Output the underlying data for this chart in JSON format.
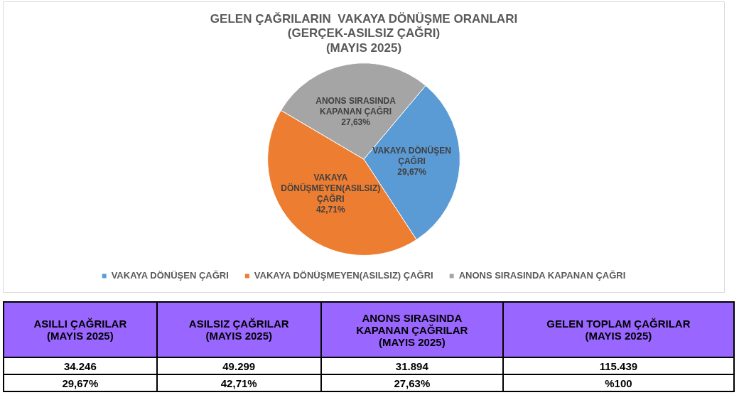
{
  "chart_data": [
    {
      "type": "pie",
      "title": "GELEN ÇAĞRILARIN  VAKAYA DÖNÜŞME ORANLARI\n(GERÇEK-ASILSIZ ÇAĞRI)\n(MAYIS 2025)",
      "categories": [
        "VAKAYA DÖNÜŞEN ÇAĞRI",
        "VAKAYA DÖNÜŞMEYEN(ASILSIZ) ÇAĞRI",
        "ANONS SIRASINDA KAPANAN ÇAĞRI"
      ],
      "values": [
        29.67,
        42.71,
        27.63
      ],
      "colors": [
        "#5b9bd5",
        "#ed7d31",
        "#a5a5a5"
      ],
      "value_labels": [
        "29,67%",
        "42,71%",
        "27,63%"
      ],
      "legend": "bottom"
    },
    {
      "type": "other",
      "categories": [
        "ASILLI ÇAĞRILAR\n(MAYIS 2025)",
        "ASILSIZ ÇAĞRILAR\n(MAYIS 2025)",
        "ANONS SIRASINDA\nKAPANAN ÇAĞRILAR\n(MAYIS 2025)",
        "GELEN TOPLAM ÇAĞRILAR\n(MAYIS 2025)"
      ],
      "color": "#9966ff",
      "series": [
        {
          "values": [
            34246,
            49299,
            31894,
            115439
          ],
          "value_labels": [
            "34.246",
            "49.299",
            "31.894",
            "115.439"
          ]
        },
        {
          "values": [
            29.67,
            42.71,
            27.63,
            100
          ],
          "value_labels": [
            "29,67%",
            "42,71%",
            "27,63%",
            "%100"
          ]
        }
      ]
    }
  ]
}
